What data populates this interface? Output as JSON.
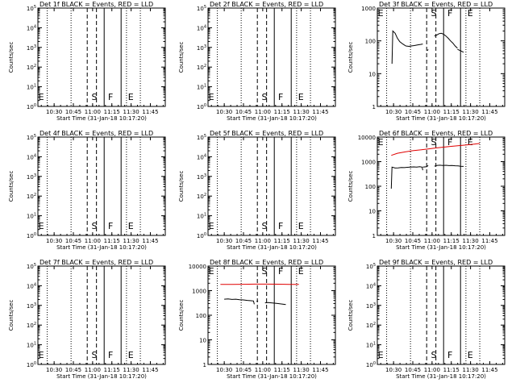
{
  "chart_data": [
    {
      "type": "line",
      "title": "Det 1f BLACK = Events, RED = LLD",
      "xlabel": "Start Time (31-Jan-18 10:17:20)",
      "ylabel": "Counts/sec",
      "x_ticks": [
        "10:30",
        "10:45",
        "11:00",
        "11:15",
        "11:30",
        "11:45"
      ],
      "y_scale": "log",
      "ylim": [
        1,
        100000
      ],
      "y_ticks": [
        "10^0",
        "10^1",
        "10^2",
        "10^3",
        "10^4",
        "10^5"
      ],
      "y_tick_style": "exp",
      "markers": [
        "E",
        "S",
        "F",
        "E"
      ],
      "series": []
    },
    {
      "type": "line",
      "title": "Det 2f BLACK = Events, RED = LLD",
      "xlabel": "Start Time (31-Jan-18 10:17:20)",
      "ylabel": "Counts/sec",
      "x_ticks": [
        "10:30",
        "10:45",
        "11:00",
        "11:15",
        "11:30",
        "11:45"
      ],
      "y_scale": "log",
      "ylim": [
        1,
        100000
      ],
      "y_ticks": [
        "10^0",
        "10^1",
        "10^2",
        "10^3",
        "10^4",
        "10^5"
      ],
      "y_tick_style": "exp",
      "markers": [
        "E",
        "S",
        "F",
        "E"
      ],
      "series": []
    },
    {
      "type": "line",
      "title": "Det 3f BLACK = Events, RED = LLD",
      "xlabel": "Start Time (31-Jan-18 10:17:20)",
      "ylabel": "Counts/sec",
      "x_ticks": [
        "10:30",
        "10:45",
        "11:00",
        "11:15",
        "11:30",
        "11:45"
      ],
      "y_scale": "log",
      "ylim": [
        1,
        1000
      ],
      "y_ticks": [
        "1",
        "10",
        "100",
        "1000"
      ],
      "y_tick_style": "plain",
      "markers": [
        "E",
        "S",
        "F",
        "E"
      ],
      "series": [
        {
          "color": "#000000",
          "segments": [
            [
              [
                10.48,
                20
              ],
              [
                10.49,
                200
              ],
              [
                10.52,
                170
              ],
              [
                10.55,
                120
              ],
              [
                10.58,
                95
              ],
              [
                10.62,
                80
              ],
              [
                10.66,
                70
              ],
              [
                10.7,
                68
              ],
              [
                10.73,
                70
              ],
              [
                10.77,
                72
              ],
              [
                10.81,
                75
              ],
              [
                10.85,
                78
              ],
              [
                10.88,
                80
              ]
            ],
            [
              [
                10.94,
                50
              ],
              [
                10.95,
                55
              ]
            ],
            [
              [
                11.03,
                140
              ],
              [
                11.06,
                150
              ],
              [
                11.09,
                165
              ],
              [
                11.12,
                170
              ],
              [
                11.15,
                160
              ],
              [
                11.18,
                140
              ],
              [
                11.21,
                120
              ],
              [
                11.24,
                100
              ],
              [
                11.27,
                85
              ],
              [
                11.3,
                70
              ],
              [
                11.33,
                60
              ]
            ],
            [
              [
                11.33,
                55
              ],
              [
                11.37,
                50
              ],
              [
                11.41,
                45
              ]
            ]
          ]
        }
      ]
    },
    {
      "type": "line",
      "title": "Det 4f BLACK = Events, RED = LLD",
      "xlabel": "Start Time (31-Jan-18 10:17:20)",
      "ylabel": "Counts/sec",
      "x_ticks": [
        "10:30",
        "10:45",
        "11:00",
        "11:15",
        "11:30",
        "11:45"
      ],
      "y_scale": "log",
      "ylim": [
        1,
        100000
      ],
      "y_ticks": [
        "10^0",
        "10^1",
        "10^2",
        "10^3",
        "10^4",
        "10^5"
      ],
      "y_tick_style": "exp",
      "markers": [
        "E",
        "S",
        "F",
        "E"
      ],
      "series": []
    },
    {
      "type": "line",
      "title": "Det 5f BLACK = Events, RED = LLD",
      "xlabel": "Start Time (31-Jan-18 10:17:20)",
      "ylabel": "Counts/sec",
      "x_ticks": [
        "10:30",
        "10:45",
        "11:00",
        "11:15",
        "11:30",
        "11:45"
      ],
      "y_scale": "log",
      "ylim": [
        1,
        100000
      ],
      "y_ticks": [
        "10^0",
        "10^1",
        "10^2",
        "10^3",
        "10^4",
        "10^5"
      ],
      "y_tick_style": "exp",
      "markers": [
        "E",
        "S",
        "F",
        "E"
      ],
      "series": []
    },
    {
      "type": "line",
      "title": "Det 6f BLACK = Events, RED = LLD",
      "xlabel": "Start Time (31-Jan-18 10:17:20)",
      "ylabel": "Counts/sec",
      "x_ticks": [
        "10:30",
        "10:45",
        "11:00",
        "11:15",
        "11:30",
        "11:45"
      ],
      "y_scale": "log",
      "ylim": [
        1,
        10000
      ],
      "y_ticks": [
        "1",
        "10",
        "100",
        "1000",
        "10000"
      ],
      "y_tick_style": "plain",
      "markers": [
        "E",
        "S",
        "F",
        "E"
      ],
      "series": [
        {
          "color": "#000000",
          "segments": [
            [
              [
                10.47,
                80
              ],
              [
                10.48,
                600
              ],
              [
                10.52,
                550
              ],
              [
                10.56,
                560
              ],
              [
                10.6,
                580
              ],
              [
                10.64,
                570
              ],
              [
                10.68,
                590
              ],
              [
                10.72,
                600
              ],
              [
                10.76,
                610
              ],
              [
                10.8,
                600
              ],
              [
                10.84,
                620
              ],
              [
                10.87,
                600
              ],
              [
                10.88,
                450
              ]
            ],
            [
              [
                10.88,
                600
              ],
              [
                10.93,
                620
              ],
              [
                10.95,
                700
              ]
            ],
            [
              [
                11.03,
                650
              ],
              [
                11.06,
                700
              ],
              [
                11.1,
                720
              ],
              [
                11.14,
                700
              ],
              [
                11.18,
                710
              ],
              [
                11.22,
                690
              ],
              [
                11.26,
                700
              ],
              [
                11.3,
                680
              ],
              [
                11.34,
                670
              ],
              [
                11.37,
                650
              ],
              [
                11.41,
                640
              ]
            ]
          ]
        },
        {
          "color": "#e00000",
          "segments": [
            [
              [
                10.47,
                1800
              ],
              [
                10.55,
                2200
              ],
              [
                10.65,
                2500
              ],
              [
                10.75,
                2800
              ],
              [
                10.85,
                3000
              ],
              [
                10.95,
                3300
              ],
              [
                11.05,
                3600
              ],
              [
                11.15,
                3900
              ],
              [
                11.25,
                4200
              ],
              [
                11.35,
                4500
              ],
              [
                11.45,
                4800
              ],
              [
                11.55,
                5200
              ],
              [
                11.62,
                5500
              ]
            ]
          ]
        }
      ]
    },
    {
      "type": "line",
      "title": "Det 7f BLACK = Events, RED = LLD",
      "xlabel": "Start Time (31-Jan-18 10:17:20)",
      "ylabel": "Counts/sec",
      "x_ticks": [
        "10:30",
        "10:45",
        "11:00",
        "11:15",
        "11:30",
        "11:45"
      ],
      "y_scale": "log",
      "ylim": [
        1,
        100000
      ],
      "y_ticks": [
        "10^0",
        "10^1",
        "10^2",
        "10^3",
        "10^4",
        "10^5"
      ],
      "y_tick_style": "exp",
      "markers": [
        "E",
        "S",
        "F",
        "E"
      ],
      "series": []
    },
    {
      "type": "line",
      "title": "Det 8f BLACK = Events, RED = LLD",
      "xlabel": "Start Time (31-Jan-18 10:17:20)",
      "ylabel": "Counts/sec",
      "x_ticks": [
        "10:30",
        "10:45",
        "11:00",
        "11:15",
        "11:30",
        "11:45"
      ],
      "y_scale": "log",
      "ylim": [
        1,
        10000
      ],
      "y_ticks": [
        "1",
        "10",
        "100",
        "1000",
        "10000"
      ],
      "y_tick_style": "plain",
      "markers": [
        "E",
        "S",
        "F",
        "E"
      ],
      "series": [
        {
          "color": "#000000",
          "segments": [
            [
              [
                10.5,
                450
              ],
              [
                10.55,
                460
              ],
              [
                10.6,
                440
              ],
              [
                10.65,
                450
              ],
              [
                10.7,
                430
              ],
              [
                10.75,
                420
              ],
              [
                10.8,
                400
              ],
              [
                10.85,
                390
              ],
              [
                10.88,
                380
              ],
              [
                10.89,
                280
              ]
            ],
            [
              [
                10.92,
                370
              ],
              [
                10.94,
                380
              ]
            ],
            [
              [
                11.03,
                320
              ],
              [
                11.07,
                330
              ],
              [
                11.11,
                320
              ],
              [
                11.15,
                310
              ],
              [
                11.19,
                300
              ],
              [
                11.23,
                290
              ],
              [
                11.27,
                280
              ],
              [
                11.3,
                270
              ]
            ]
          ]
        },
        {
          "color": "#e00000",
          "segments": [
            [
              [
                10.45,
                1800
              ],
              [
                10.6,
                1800
              ],
              [
                10.75,
                1820
              ],
              [
                10.9,
                1850
              ],
              [
                11.05,
                1850
              ],
              [
                11.2,
                1830
              ],
              [
                11.35,
                1800
              ],
              [
                11.47,
                1800
              ]
            ]
          ]
        }
      ]
    },
    {
      "type": "line",
      "title": "Det 9f BLACK = Events, RED = LLD",
      "xlabel": "Start Time (31-Jan-18 10:17:20)",
      "ylabel": "Counts/sec",
      "x_ticks": [
        "10:30",
        "10:45",
        "11:00",
        "11:15",
        "11:30",
        "11:45"
      ],
      "y_scale": "log",
      "ylim": [
        1,
        100000
      ],
      "y_ticks": [
        "10^0",
        "10^1",
        "10^2",
        "10^3",
        "10^4",
        "10^5"
      ],
      "y_tick_style": "exp",
      "markers": [
        "E",
        "S",
        "F",
        "E"
      ],
      "series": []
    }
  ]
}
